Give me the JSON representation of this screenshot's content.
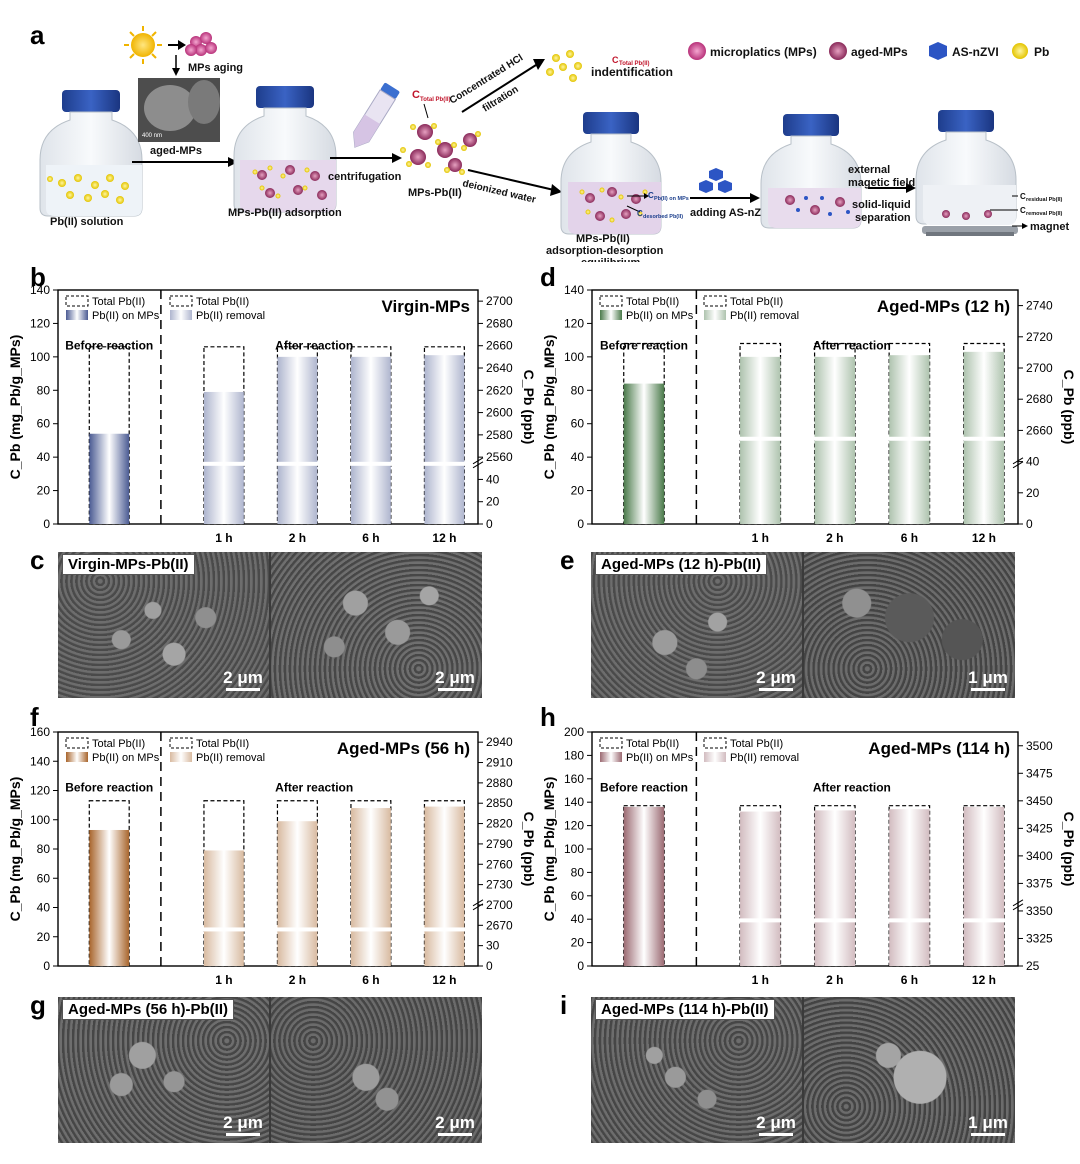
{
  "panel_labels": {
    "a": "a",
    "b": "b",
    "c": "c",
    "d": "d",
    "e": "e",
    "f": "f",
    "g": "g",
    "h": "h",
    "i": "i"
  },
  "schematic": {
    "pb_solution": "Pb(II) solution",
    "mps_aging": "MPs aging",
    "scale_bar": "400 nm",
    "aged_mps": "aged-MPs",
    "adsorption": "MPs-Pb(II) adsorption",
    "centrifugation": "centrifugation",
    "c_total": "C",
    "c_total_sub": "Total Pb(II)",
    "mps_pb": "MPs-Pb(II)",
    "hcl": "Concentrated HCl",
    "filtration": "filtration",
    "identification": "indentification",
    "deionized": "deionized water",
    "c_on_mps_sub": "Pb(II) on MPs",
    "c_desorbed_sub": "desorbed Pb(II)",
    "eq1": "MPs-Pb(II)",
    "eq2": "adsorption-desorption",
    "eq3": "equilibrium",
    "adding": "adding AS-nZVI",
    "ext1": "external",
    "ext2": "magetic field",
    "sl1": "solid-liquid",
    "sl2": "separation",
    "c_residual_sub": "residual Pb(II)",
    "c_removal_sub": "removal Pb(II)",
    "magnet": "magnet",
    "legend": [
      "microplatics (MPs)",
      "aged-MPs",
      "AS-nZVI",
      "Pb"
    ]
  },
  "sem": [
    {
      "label": "Virgin-MPs-Pb(II)",
      "scales": [
        "2 μm",
        "2 μm"
      ]
    },
    {
      "label": "Aged-MPs (12 h)-Pb(II)",
      "scales": [
        "2 μm",
        "1 μm"
      ]
    },
    {
      "label": "Aged-MPs (56 h)-Pb(II)",
      "scales": [
        "2 μm",
        "2 μm"
      ]
    },
    {
      "label": "Aged-MPs (114 h)-Pb(II)",
      "scales": [
        "2 μm",
        "1 μm"
      ]
    }
  ],
  "chart_data": [
    {
      "panel": "b",
      "type": "bar",
      "title": "Virgin-MPs",
      "categories": [
        "",
        "1 h",
        "2 h",
        "6 h",
        "12 h"
      ],
      "group_labels": [
        "Before reaction",
        "After reaction"
      ],
      "ylabel_left": "C_Pb (mg_Pb/g_MPs)",
      "ylabel_right": "C_Pb (ppb)",
      "ylim": [
        0,
        140
      ],
      "yticks": [
        0,
        20,
        40,
        60,
        80,
        100,
        120,
        140
      ],
      "right_ticks": [
        "0",
        "20",
        "40",
        "2560",
        "2580",
        "2600",
        "2620",
        "2640",
        "2660",
        "2680",
        "2700"
      ],
      "legend": [
        "Total Pb(II)",
        "Pb(II) on MPs",
        "Total Pb(II)",
        "Pb(II) removal"
      ],
      "series": [
        {
          "name": "Total Pb(II)",
          "values": [
            106,
            106,
            106,
            106,
            106
          ]
        },
        {
          "name": "Pb(II) on MPs / Pb(II) removal",
          "values": [
            54,
            79,
            100,
            100,
            101
          ]
        }
      ],
      "break_value": 36,
      "color": "#4b5b93"
    },
    {
      "panel": "d",
      "type": "bar",
      "title": "Aged-MPs (12 h)",
      "categories": [
        "",
        "1 h",
        "2 h",
        "6 h",
        "12 h"
      ],
      "group_labels": [
        "Before reaction",
        "After reaction"
      ],
      "ylabel_left": "C_Pb (mg_Pb/g_MPs)",
      "ylabel_right": "C_Pb (ppb)",
      "ylim": [
        0,
        140
      ],
      "yticks": [
        0,
        20,
        40,
        60,
        80,
        100,
        120,
        140
      ],
      "right_ticks": [
        "0",
        "20",
        "40",
        "2660",
        "2680",
        "2700",
        "2720",
        "2740"
      ],
      "legend": [
        "Total Pb(II)",
        "Pb(II) on MPs",
        "Total Pb(II)",
        "Pb(II) removal"
      ],
      "series": [
        {
          "name": "Total Pb(II)",
          "values": [
            108,
            108,
            108,
            108,
            108
          ]
        },
        {
          "name": "Pb(II) on MPs / Pb(II) removal",
          "values": [
            84,
            100,
            100,
            101,
            103
          ]
        }
      ],
      "break_value": 51,
      "color": "#4a7a4a"
    },
    {
      "panel": "f",
      "type": "bar",
      "title": "Aged-MPs (56 h)",
      "categories": [
        "",
        "1 h",
        "2 h",
        "6 h",
        "12 h"
      ],
      "group_labels": [
        "Before reaction",
        "After reaction"
      ],
      "ylabel_left": "C_Pb (mg_Pb/g_MPs)",
      "ylabel_right": "C_Pb (ppb)",
      "ylim": [
        0,
        160
      ],
      "yticks": [
        0,
        20,
        40,
        60,
        80,
        100,
        120,
        140,
        160
      ],
      "right_ticks": [
        "0",
        "30",
        "2670",
        "2700",
        "2730",
        "2760",
        "2790",
        "2820",
        "2850",
        "2880",
        "2910",
        "2940"
      ],
      "legend": [
        "Total Pb(II)",
        "Pb(II) on MPs",
        "Total Pb(II)",
        "Pb(II) removal"
      ],
      "series": [
        {
          "name": "Total Pb(II)",
          "values": [
            113,
            113,
            113,
            113,
            113
          ]
        },
        {
          "name": "Pb(II) on MPs / Pb(II) removal",
          "values": [
            93,
            79,
            99,
            108,
            109
          ]
        }
      ],
      "break_value": 25,
      "color": "#a8652c"
    },
    {
      "panel": "h",
      "type": "bar",
      "title": "Aged-MPs (114 h)",
      "categories": [
        "",
        "1 h",
        "2 h",
        "6 h",
        "12 h"
      ],
      "group_labels": [
        "Before reaction",
        "After reaction"
      ],
      "ylabel_left": "C_Pb (mg_Pb/g_MPs)",
      "ylabel_right": "C_Pb (ppb)",
      "ylim": [
        0,
        200
      ],
      "yticks": [
        0,
        20,
        40,
        60,
        80,
        100,
        120,
        140,
        160,
        180,
        200
      ],
      "right_ticks": [
        "25",
        "3325",
        "3350",
        "3375",
        "3400",
        "3425",
        "3450",
        "3475",
        "3500"
      ],
      "legend": [
        "Total Pb(II)",
        "Pb(II) on MPs",
        "Total Pb(II)",
        "Pb(II) removal"
      ],
      "series": [
        {
          "name": "Total Pb(II)",
          "values": [
            137,
            137,
            137,
            137,
            137
          ]
        },
        {
          "name": "Pb(II) on MPs / Pb(II) removal",
          "values": [
            136,
            132,
            133,
            134,
            136
          ]
        }
      ],
      "break_value": 39,
      "color": "#9b6a72"
    }
  ]
}
